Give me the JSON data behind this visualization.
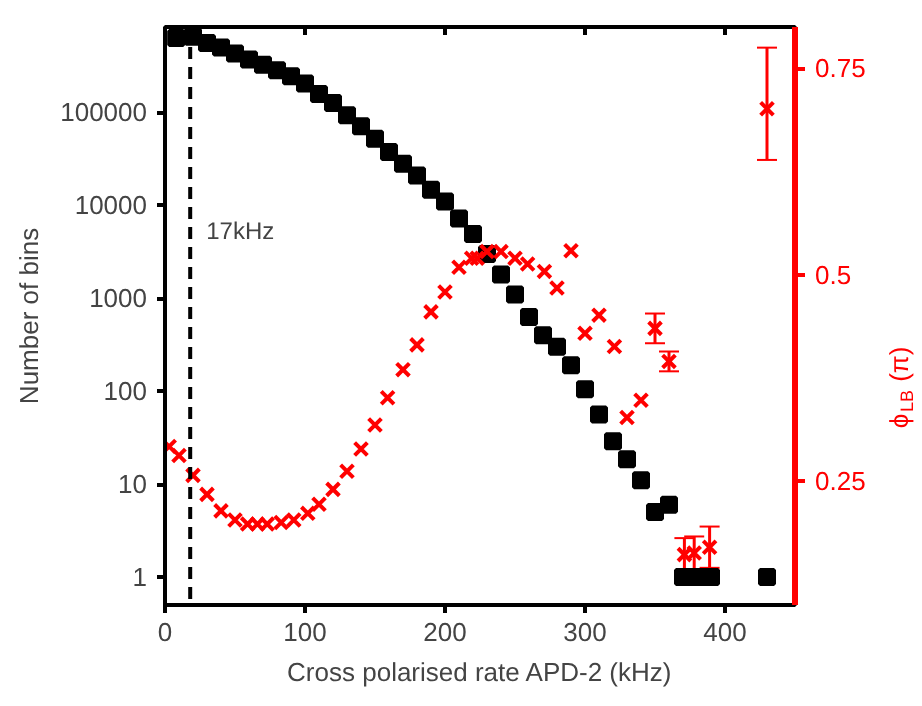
{
  "chart_data": {
    "type": "scatter",
    "xlabel": "Cross polarised rate APD-2 (kHz)",
    "ylabel": "Number of bins",
    "y2label": "ϕ$_{LB}$ (π)",
    "xlim": [
      0,
      450
    ],
    "xticks": [
      0,
      100,
      200,
      300,
      400
    ],
    "ylim": [
      0.5,
      830000
    ],
    "yticks": [
      1,
      10,
      100,
      1000,
      10000,
      100000
    ],
    "log": "y",
    "y2lim": [
      0.1,
      0.8
    ],
    "y2ticks": [
      0.25,
      0.5,
      0.75
    ],
    "grid": false,
    "ref_lines": [
      {
        "axis": "x",
        "value": 18,
        "label": "17kHz",
        "color": "#000000",
        "line_style": "dashed"
      }
    ],
    "series": [
      {
        "color": "#000000",
        "marker": "square",
        "x": [
          8,
          20,
          30,
          40,
          50,
          60,
          70,
          80,
          90,
          100,
          110,
          120,
          130,
          140,
          150,
          160,
          170,
          180,
          190,
          200,
          210,
          220,
          230,
          240,
          250,
          260,
          270,
          280,
          290,
          300,
          310,
          320,
          330,
          340,
          350,
          360,
          370,
          380,
          390,
          430
        ],
        "values": [
          631000,
          650000,
          560000,
          500000,
          430000,
          370000,
          325000,
          285000,
          245000,
          205000,
          158000,
          126000,
          93000,
          71000,
          52000,
          37500,
          28000,
          21000,
          14700,
          11000,
          7200,
          4900,
          3000,
          1800,
          1100,
          630,
          400,
          300,
          190,
          105,
          56,
          29,
          18.5,
          11,
          5,
          6,
          1,
          1,
          1,
          1
        ]
      },
      {
        "color": "#ff0000",
        "marker": "cross",
        "axis": "y2",
        "x": [
          3,
          10,
          20,
          30,
          40,
          50,
          59,
          66,
          73,
          83,
          92,
          102,
          110,
          120,
          130,
          140,
          150,
          159,
          170,
          180,
          190,
          200,
          210,
          219,
          223,
          230,
          240,
          250,
          259,
          271,
          280,
          290,
          300,
          310,
          321,
          330,
          340,
          350,
          360,
          371,
          378,
          389,
          430
        ],
        "values": [
          0.292,
          0.281,
          0.257,
          0.234,
          0.214,
          0.203,
          0.198,
          0.198,
          0.198,
          0.2,
          0.203,
          0.211,
          0.222,
          0.24,
          0.262,
          0.289,
          0.318,
          0.351,
          0.385,
          0.415,
          0.455,
          0.479,
          0.509,
          0.52,
          0.52,
          0.528,
          0.528,
          0.52,
          0.513,
          0.504,
          0.484,
          0.529,
          0.429,
          0.451,
          0.413,
          0.327,
          0.348,
          0.435,
          0.395,
          0.161,
          0.163,
          0.17,
          0.701
        ],
        "errors": [
          null,
          null,
          null,
          null,
          null,
          null,
          null,
          null,
          null,
          null,
          null,
          null,
          null,
          null,
          null,
          null,
          null,
          null,
          null,
          null,
          null,
          null,
          null,
          null,
          null,
          null,
          null,
          null,
          null,
          null,
          null,
          null,
          null,
          null,
          null,
          null,
          null,
          0.018,
          0.012,
          0.02,
          0.02,
          0.025,
          [
            0.639,
            0.775
          ]
        ]
      }
    ]
  }
}
